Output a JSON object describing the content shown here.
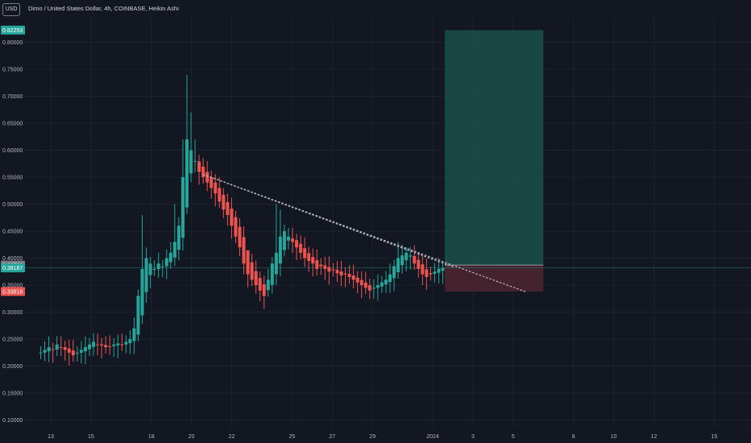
{
  "header": {
    "currency_button": "USD",
    "title": "Dimo / United States Dollar, 4h, COINBASE, Heikin Ashi"
  },
  "colors": {
    "background": "#131722",
    "grid": "#1e222d",
    "up": "#26a69a",
    "down": "#ef5350",
    "text": "#b2b5be",
    "target_zone": "#1b4c46",
    "stop_zone": "#4a2430",
    "trendline": "#b2b5be"
  },
  "chart_data": {
    "type": "candlestick",
    "symbol": "Dimo / United States Dollar",
    "interval": "4h",
    "exchange": "COINBASE",
    "style": "Heikin Ashi",
    "ylim": [
      0.085,
      0.855
    ],
    "y_ticks": [
      "0.80000",
      "0.75000",
      "0.70000",
      "0.65000",
      "0.60000",
      "0.55000",
      "0.50000",
      "0.45000",
      "0.40000",
      "0.35000",
      "0.30000",
      "0.25000",
      "0.20000",
      "0.15000",
      "0.10000"
    ],
    "x_ticks": [
      {
        "label": "13",
        "day": 13
      },
      {
        "label": "15",
        "day": 15
      },
      {
        "label": "18",
        "day": 18
      },
      {
        "label": "20",
        "day": 20
      },
      {
        "label": "22",
        "day": 22
      },
      {
        "label": "25",
        "day": 25
      },
      {
        "label": "27",
        "day": 27
      },
      {
        "label": "29",
        "day": 29
      },
      {
        "label": "2024",
        "day": 32
      },
      {
        "label": "3",
        "day": 34
      },
      {
        "label": "5",
        "day": 36
      },
      {
        "label": "8",
        "day": 39
      },
      {
        "label": "10",
        "day": 41
      },
      {
        "label": "12",
        "day": 43
      },
      {
        "label": "15",
        "day": 46
      }
    ],
    "price_labels": [
      {
        "text": "0.82253",
        "value": 0.82253,
        "color": "#26a69a"
      },
      {
        "text": "0.38709",
        "value": 0.38709,
        "color": "#787b86"
      },
      {
        "text": "0.38187",
        "value": 0.38187,
        "color": "#26a69a"
      },
      {
        "text": "0.33816",
        "value": 0.33816,
        "color": "#ef5350"
      }
    ],
    "current_price": 0.38187,
    "position": {
      "entry": 0.38709,
      "target": 0.82253,
      "stop": 0.33816,
      "start_day": 32.6,
      "end_day": 37.5
    },
    "trendlines": [
      {
        "from": {
          "day": 20.6,
          "price": 0.555
        },
        "to": {
          "day": 33.0,
          "price": 0.384
        }
      },
      {
        "from": {
          "day": 20.6,
          "price": 0.555
        },
        "to": {
          "day": 36.6,
          "price": 0.338
        }
      }
    ],
    "closes": [
      0.225,
      0.23,
      0.235,
      0.23,
      0.24,
      0.235,
      0.23,
      0.225,
      0.22,
      0.225,
      0.23,
      0.235,
      0.24,
      0.245,
      0.24,
      0.238,
      0.235,
      0.237,
      0.24,
      0.242,
      0.24,
      0.245,
      0.25,
      0.27,
      0.33,
      0.38,
      0.4,
      0.39,
      0.38,
      0.39,
      0.385,
      0.4,
      0.41,
      0.43,
      0.46,
      0.55,
      0.62,
      0.6,
      0.58,
      0.56,
      0.55,
      0.54,
      0.53,
      0.52,
      0.505,
      0.49,
      0.48,
      0.46,
      0.44,
      0.42,
      0.39,
      0.37,
      0.36,
      0.35,
      0.34,
      0.33,
      0.36,
      0.39,
      0.41,
      0.44,
      0.45,
      0.44,
      0.43,
      0.42,
      0.41,
      0.4,
      0.395,
      0.39,
      0.38,
      0.385,
      0.38,
      0.375,
      0.378,
      0.372,
      0.368,
      0.37,
      0.365,
      0.36,
      0.355,
      0.35,
      0.345,
      0.34,
      0.345,
      0.35,
      0.355,
      0.36,
      0.37,
      0.385,
      0.4,
      0.405,
      0.41,
      0.405,
      0.39,
      0.38,
      0.37,
      0.365,
      0.37,
      0.375,
      0.38,
      0.382
    ]
  }
}
